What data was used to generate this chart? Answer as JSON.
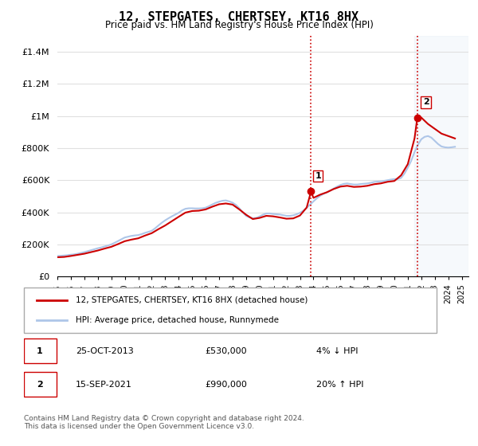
{
  "title": "12, STEPGATES, CHERTSEY, KT16 8HX",
  "subtitle": "Price paid vs. HM Land Registry's House Price Index (HPI)",
  "ylabel_ticks": [
    "£0",
    "£200K",
    "£400K",
    "£600K",
    "£800K",
    "£1M",
    "£1.2M",
    "£1.4M"
  ],
  "ytick_values": [
    0,
    200000,
    400000,
    600000,
    800000,
    1000000,
    1200000,
    1400000
  ],
  "ylim": [
    0,
    1500000
  ],
  "xlim_start": 1995.0,
  "xlim_end": 2025.5,
  "background_color": "#ffffff",
  "plot_bg_color": "#ffffff",
  "grid_color": "#e0e0e0",
  "hpi_color": "#aec6e8",
  "price_color": "#cc0000",
  "vline_color": "#cc0000",
  "vline_style": ":",
  "transaction1_x": 2013.82,
  "transaction1_y": 530000,
  "transaction1_label": "1",
  "transaction2_x": 2021.71,
  "transaction2_y": 990000,
  "transaction2_label": "2",
  "legend_line1": "12, STEPGATES, CHERTSEY, KT16 8HX (detached house)",
  "legend_line2": "HPI: Average price, detached house, Runnymede",
  "annotation1_num": "1",
  "annotation1_date": "25-OCT-2013",
  "annotation1_price": "£530,000",
  "annotation1_hpi": "4% ↓ HPI",
  "annotation2_num": "2",
  "annotation2_date": "15-SEP-2021",
  "annotation2_price": "£990,000",
  "annotation2_hpi": "20% ↑ HPI",
  "footer": "Contains HM Land Registry data © Crown copyright and database right 2024.\nThis data is licensed under the Open Government Licence v3.0.",
  "hpi_data_x": [
    1995.0,
    1995.25,
    1995.5,
    1995.75,
    1996.0,
    1996.25,
    1996.5,
    1996.75,
    1997.0,
    1997.25,
    1997.5,
    1997.75,
    1998.0,
    1998.25,
    1998.5,
    1998.75,
    1999.0,
    1999.25,
    1999.5,
    1999.75,
    2000.0,
    2000.25,
    2000.5,
    2000.75,
    2001.0,
    2001.25,
    2001.5,
    2001.75,
    2002.0,
    2002.25,
    2002.5,
    2002.75,
    2003.0,
    2003.25,
    2003.5,
    2003.75,
    2004.0,
    2004.25,
    2004.5,
    2004.75,
    2005.0,
    2005.25,
    2005.5,
    2005.75,
    2006.0,
    2006.25,
    2006.5,
    2006.75,
    2007.0,
    2007.25,
    2007.5,
    2007.75,
    2008.0,
    2008.25,
    2008.5,
    2008.75,
    2009.0,
    2009.25,
    2009.5,
    2009.75,
    2010.0,
    2010.25,
    2010.5,
    2010.75,
    2011.0,
    2011.25,
    2011.5,
    2011.75,
    2012.0,
    2012.25,
    2012.5,
    2012.75,
    2013.0,
    2013.25,
    2013.5,
    2013.75,
    2014.0,
    2014.25,
    2014.5,
    2014.75,
    2015.0,
    2015.25,
    2015.5,
    2015.75,
    2016.0,
    2016.25,
    2016.5,
    2016.75,
    2017.0,
    2017.25,
    2017.5,
    2017.75,
    2018.0,
    2018.25,
    2018.5,
    2018.75,
    2019.0,
    2019.25,
    2019.5,
    2019.75,
    2020.0,
    2020.25,
    2020.5,
    2020.75,
    2021.0,
    2021.25,
    2021.5,
    2021.75,
    2022.0,
    2022.25,
    2022.5,
    2022.75,
    2023.0,
    2023.25,
    2023.5,
    2023.75,
    2024.0,
    2024.25,
    2024.5
  ],
  "hpi_data_y": [
    128000,
    129000,
    131000,
    133000,
    136000,
    138000,
    142000,
    147000,
    152000,
    158000,
    164000,
    170000,
    176000,
    181000,
    187000,
    193000,
    200000,
    210000,
    221000,
    232000,
    243000,
    248000,
    253000,
    256000,
    258000,
    264000,
    272000,
    278000,
    285000,
    300000,
    318000,
    335000,
    350000,
    363000,
    375000,
    386000,
    397000,
    412000,
    422000,
    425000,
    425000,
    424000,
    424000,
    425000,
    429000,
    438000,
    449000,
    459000,
    466000,
    472000,
    474000,
    468000,
    460000,
    446000,
    425000,
    400000,
    378000,
    368000,
    363000,
    365000,
    374000,
    385000,
    393000,
    393000,
    390000,
    388000,
    386000,
    382000,
    378000,
    378000,
    381000,
    388000,
    397000,
    410000,
    428000,
    448000,
    468000,
    487000,
    503000,
    515000,
    524000,
    535000,
    548000,
    560000,
    570000,
    577000,
    580000,
    576000,
    573000,
    573000,
    576000,
    578000,
    580000,
    584000,
    589000,
    591000,
    592000,
    596000,
    600000,
    604000,
    607000,
    607000,
    614000,
    641000,
    678000,
    720000,
    775000,
    820000,
    855000,
    870000,
    875000,
    865000,
    845000,
    825000,
    810000,
    805000,
    803000,
    805000,
    808000
  ],
  "price_line_x": [
    1995.0,
    1995.5,
    1996.0,
    1996.5,
    1997.0,
    1997.5,
    1998.0,
    1998.5,
    1999.0,
    1999.5,
    2000.0,
    2000.5,
    2001.0,
    2001.5,
    2002.0,
    2002.5,
    2003.0,
    2003.5,
    2004.0,
    2004.5,
    2005.0,
    2005.5,
    2006.0,
    2006.5,
    2007.0,
    2007.5,
    2008.0,
    2008.5,
    2009.0,
    2009.5,
    2010.0,
    2010.5,
    2011.0,
    2011.5,
    2012.0,
    2012.5,
    2013.0,
    2013.5,
    2013.82,
    2014.0,
    2014.5,
    2015.0,
    2015.5,
    2016.0,
    2016.5,
    2017.0,
    2017.5,
    2018.0,
    2018.5,
    2019.0,
    2019.5,
    2020.0,
    2020.5,
    2021.0,
    2021.5,
    2021.71,
    2022.0,
    2022.5,
    2023.0,
    2023.5,
    2024.0,
    2024.5
  ],
  "price_line_y": [
    120000,
    122000,
    128000,
    135000,
    142000,
    152000,
    162000,
    174000,
    185000,
    202000,
    220000,
    230000,
    238000,
    255000,
    270000,
    295000,
    318000,
    345000,
    372000,
    398000,
    408000,
    410000,
    418000,
    435000,
    450000,
    455000,
    448000,
    418000,
    385000,
    358000,
    365000,
    378000,
    375000,
    368000,
    360000,
    362000,
    380000,
    430000,
    530000,
    490000,
    510000,
    525000,
    545000,
    560000,
    565000,
    558000,
    560000,
    565000,
    575000,
    580000,
    590000,
    595000,
    630000,
    700000,
    860000,
    990000,
    990000,
    950000,
    920000,
    890000,
    875000,
    860000
  ]
}
